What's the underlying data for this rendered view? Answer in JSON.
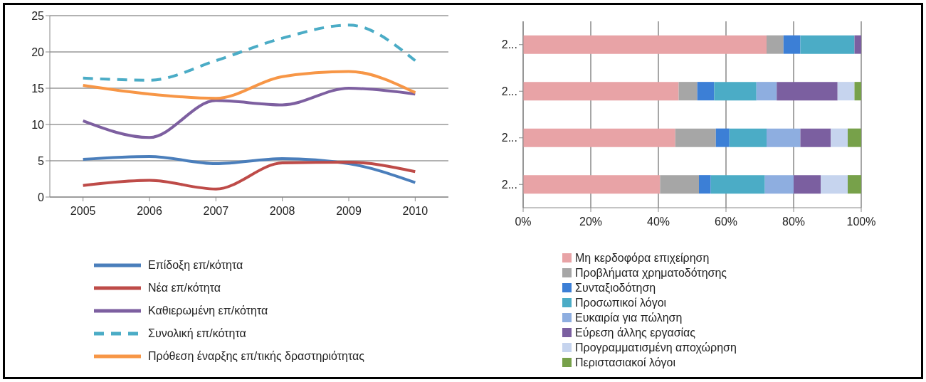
{
  "chart_data": [
    {
      "type": "line",
      "categories": [
        "2005",
        "2006",
        "2007",
        "2008",
        "2009",
        "2010"
      ],
      "ylim": [
        0,
        25
      ],
      "yticks": [
        0,
        5,
        10,
        15,
        20,
        25
      ],
      "grid": "y",
      "legend": "bottom",
      "marker": "none",
      "line_style": "solid",
      "series": [
        {
          "name": "Επίδοξη επ/κότητα",
          "color": "#4a7ebb",
          "values": [
            5.2,
            5.6,
            4.6,
            5.3,
            4.6,
            2.0
          ]
        },
        {
          "name": "Νέα επ/κότητα",
          "color": "#be4b48",
          "values": [
            1.6,
            2.3,
            1.1,
            4.7,
            4.8,
            3.5
          ]
        },
        {
          "name": "Καθιερωμένη επ/κότητα",
          "color": "#7d5fa0",
          "values": [
            10.5,
            8.2,
            13.3,
            12.7,
            15.0,
            14.2
          ]
        },
        {
          "name": "Συνολική επ/κότητα",
          "color": "#4bacc6",
          "line_style": "dashed",
          "values": [
            16.4,
            16.1,
            18.8,
            21.9,
            23.7,
            18.8
          ]
        },
        {
          "name": "Πρόθεση έναρξης επ/τικής δραστηριότητας",
          "color": "#f79646",
          "values": [
            15.4,
            14.2,
            13.6,
            16.6,
            17.3,
            14.4
          ]
        }
      ]
    },
    {
      "type": "bar",
      "orientation": "horizontal",
      "stacked": true,
      "categories": [
        "2...",
        "2...",
        "2...",
        "2..."
      ],
      "xlim": [
        0,
        100
      ],
      "xticks": [
        {
          "value": 0,
          "label": "0%"
        },
        {
          "value": 20,
          "label": "20%"
        },
        {
          "value": 40,
          "label": "40%"
        },
        {
          "value": 60,
          "label": "60%"
        },
        {
          "value": 80,
          "label": "80%"
        },
        {
          "value": 100,
          "label": "100%"
        }
      ],
      "grid": "x",
      "legend": "bottom",
      "series": [
        {
          "name": "Μη κερδοφόρα επιχείρηση",
          "color": "#e8a3a6",
          "values": [
            72,
            46,
            45,
            40.5
          ]
        },
        {
          "name": "Προβλήματα χρηματοδότησης",
          "color": "#a6a6a6",
          "values": [
            5,
            5.5,
            12,
            11.5
          ]
        },
        {
          "name": "Συνταξιοδότηση",
          "color": "#3c7fd6",
          "values": [
            5,
            5,
            4,
            3.5
          ]
        },
        {
          "name": "Προσωπικοί λόγοι",
          "color": "#4bacc6",
          "values": [
            16,
            12.5,
            11,
            16
          ]
        },
        {
          "name": "Ευκαιρία για πώληση",
          "color": "#8eaee0",
          "values": [
            0,
            6,
            10,
            8.5
          ]
        },
        {
          "name": "Εύρεση άλλης εργασίας",
          "color": "#7b5fa0",
          "values": [
            2,
            18,
            9,
            8
          ]
        },
        {
          "name": "Προγραμματισμένη αποχώρηση",
          "color": "#c6d4ee",
          "values": [
            0,
            5,
            5,
            8
          ]
        },
        {
          "name": "Περιστασιακοί λόγοι",
          "color": "#77a14a",
          "values": [
            0,
            2,
            4,
            4
          ]
        }
      ]
    }
  ]
}
